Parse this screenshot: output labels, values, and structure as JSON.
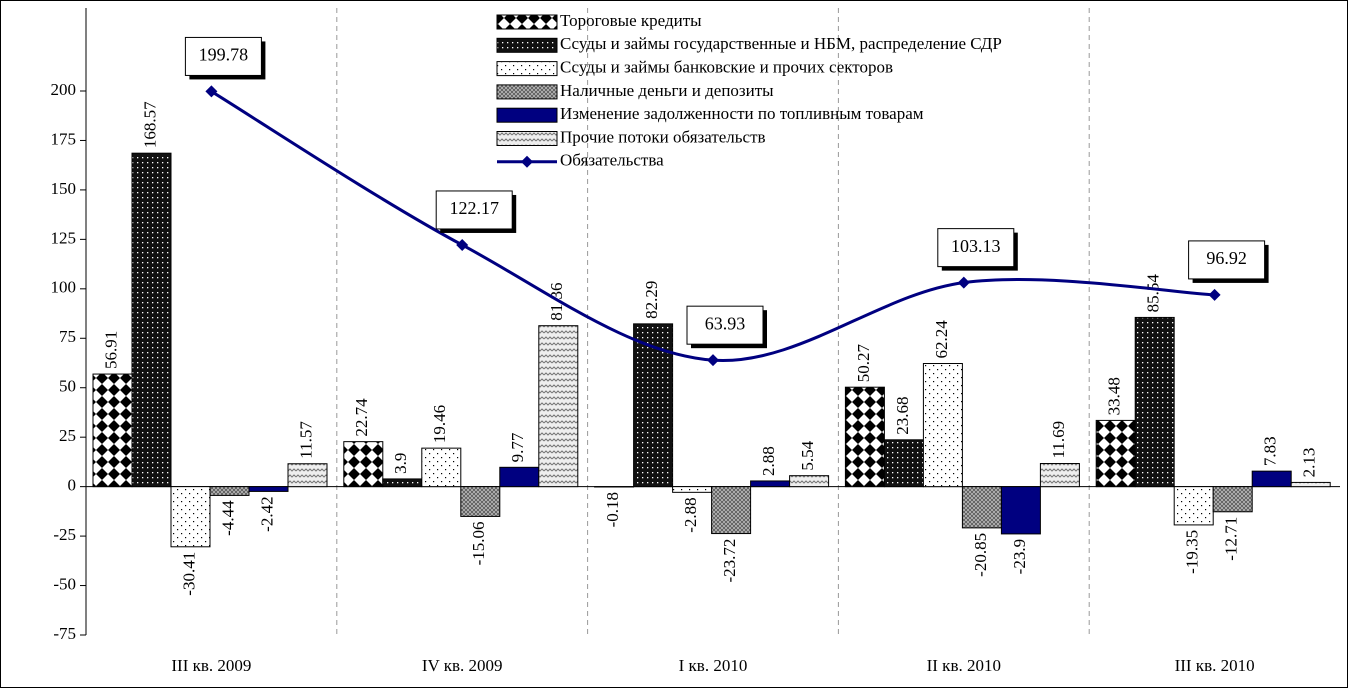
{
  "chart_data": {
    "type": "bar",
    "categories": [
      "III кв. 2009",
      "IV кв. 2009",
      "I кв. 2010",
      "II кв. 2010",
      "III кв. 2010"
    ],
    "series": [
      {
        "name": "Тороговые кредиты",
        "values": [
          56.91,
          22.74,
          -0.18,
          50.27,
          33.48
        ]
      },
      {
        "name": "Ссуды и займы государственные и НБМ, распределение СДР",
        "values": [
          168.57,
          3.9,
          82.29,
          23.68,
          85.54
        ]
      },
      {
        "name": "Ссуды и займы банковские и прочих секторов",
        "values": [
          -30.41,
          19.46,
          -2.88,
          62.24,
          -19.35
        ]
      },
      {
        "name": "Наличные деньги и депозиты",
        "values": [
          -4.44,
          -15.06,
          -23.72,
          -20.85,
          -12.71
        ]
      },
      {
        "name": "Изменение задолженности по топливным товарам",
        "color": "#000080",
        "values": [
          -2.42,
          9.77,
          2.88,
          -23.9,
          7.83
        ]
      },
      {
        "name": "Прочие потоки обязательств",
        "values": [
          11.57,
          81.36,
          5.54,
          11.69,
          2.13
        ]
      },
      {
        "name": "Обязательства",
        "type": "line",
        "color": "#000080",
        "values": [
          199.78,
          122.17,
          63.93,
          103.13,
          96.92
        ]
      }
    ],
    "ylim": [
      -75,
      200
    ],
    "yticks": [
      -75,
      -50,
      -25,
      0,
      25,
      50,
      75,
      100,
      125,
      150,
      175,
      200
    ]
  }
}
